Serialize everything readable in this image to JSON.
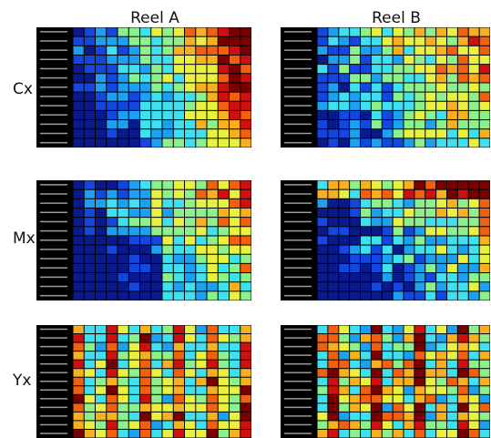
{
  "column_headers": [
    "Reel A",
    "Reel B"
  ],
  "row_labels": [
    "Cx",
    "Mx",
    "Yx"
  ],
  "chart_data": [
    {
      "type": "heatmap",
      "title": "",
      "column": "Reel A",
      "row": "Cx",
      "rows": 13,
      "cols": 16,
      "pattern": "cx-a",
      "seed": 11
    },
    {
      "type": "heatmap",
      "title": "",
      "column": "Reel B",
      "row": "Cx",
      "rows": 13,
      "cols": 16,
      "pattern": "cx-b",
      "seed": 23
    },
    {
      "type": "heatmap",
      "title": "",
      "column": "Reel A",
      "row": "Mx",
      "rows": 13,
      "cols": 16,
      "pattern": "mx-a",
      "seed": 37
    },
    {
      "type": "heatmap",
      "title": "",
      "column": "Reel B",
      "row": "Mx",
      "rows": 13,
      "cols": 16,
      "pattern": "mx-b",
      "seed": 41
    },
    {
      "type": "heatmap",
      "title": "",
      "column": "Reel A",
      "row": "Yx",
      "rows": 13,
      "cols": 16,
      "pattern": "yx-a",
      "seed": 53
    },
    {
      "type": "heatmap",
      "title": "",
      "column": "Reel B",
      "row": "Yx",
      "rows": 13,
      "cols": 16,
      "pattern": "yx-b",
      "seed": 67
    }
  ],
  "colors": {
    "scale": [
      "#0a1a8c",
      "#1446e0",
      "#1ea0f0",
      "#3fe0f0",
      "#8cf08c",
      "#e8f040",
      "#f8b020",
      "#f06010",
      "#d01010",
      "#7a0000"
    ],
    "background": "#000000"
  }
}
